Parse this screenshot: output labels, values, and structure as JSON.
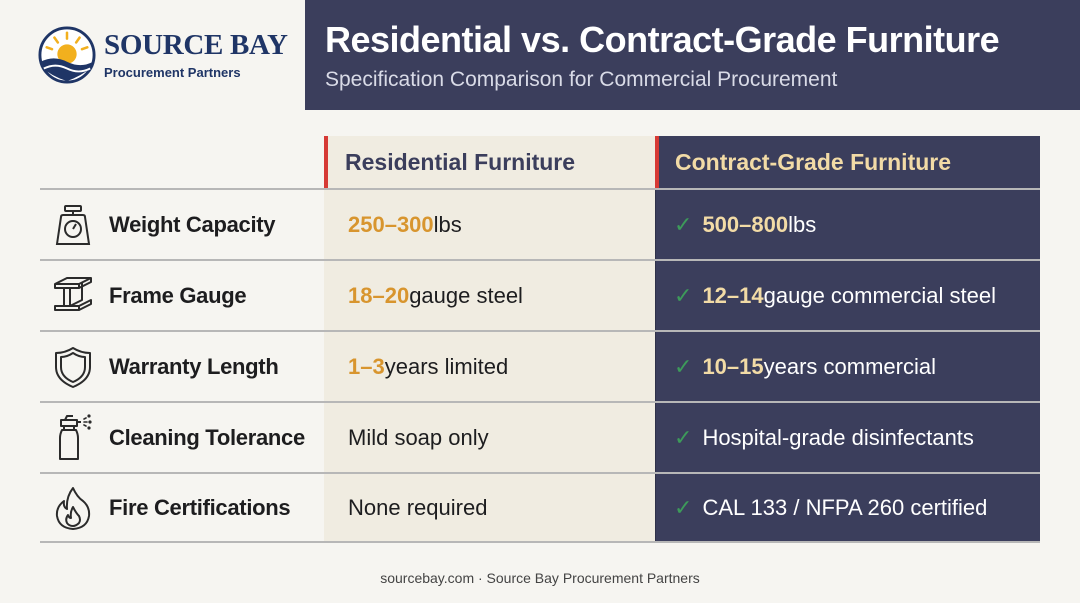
{
  "brand": {
    "name": "SOURCE BAY",
    "tagline": "Procurement Partners"
  },
  "header": {
    "title": "Residential vs. Contract-Grade Furniture",
    "subtitle": "Specification Comparison for Commercial Procurement"
  },
  "columns": {
    "residential": "Residential Furniture",
    "contract": "Contract-Grade Furniture"
  },
  "rows": [
    {
      "icon": "scale-icon",
      "label": "Weight Capacity",
      "res_num": "250–300",
      "res_rest": " lbs",
      "con_num": "500–800",
      "con_rest": " lbs"
    },
    {
      "icon": "steel-beam-icon",
      "label": "Frame Gauge",
      "res_num": "18–20",
      "res_rest": " gauge steel",
      "con_num": "12–14",
      "con_rest": " gauge commercial steel"
    },
    {
      "icon": "shield-icon",
      "label": "Warranty Length",
      "res_num": "1–3",
      "res_rest": " years limited",
      "con_num": "10–15",
      "con_rest": " years commercial"
    },
    {
      "icon": "spray-bottle-icon",
      "label": "Cleaning Tolerance",
      "res_num": "",
      "res_rest": "Mild soap only",
      "con_num": "",
      "con_rest": "Hospital-grade disinfectants"
    },
    {
      "icon": "flame-icon",
      "label": "Fire Certifications",
      "res_num": "",
      "res_rest": "None required",
      "con_num": "",
      "con_rest": "CAL 133 / NFPA 260 certified"
    }
  ],
  "check_glyph": "✓",
  "footer": "sourcebay.com · Source Bay Procurement Partners",
  "colors": {
    "navy": "#3b3e5c",
    "cream": "#f0ece1",
    "accent_red": "#d63a35",
    "orange": "#d8952e",
    "gold": "#f2dba6",
    "check_green": "#3d9a5a"
  }
}
